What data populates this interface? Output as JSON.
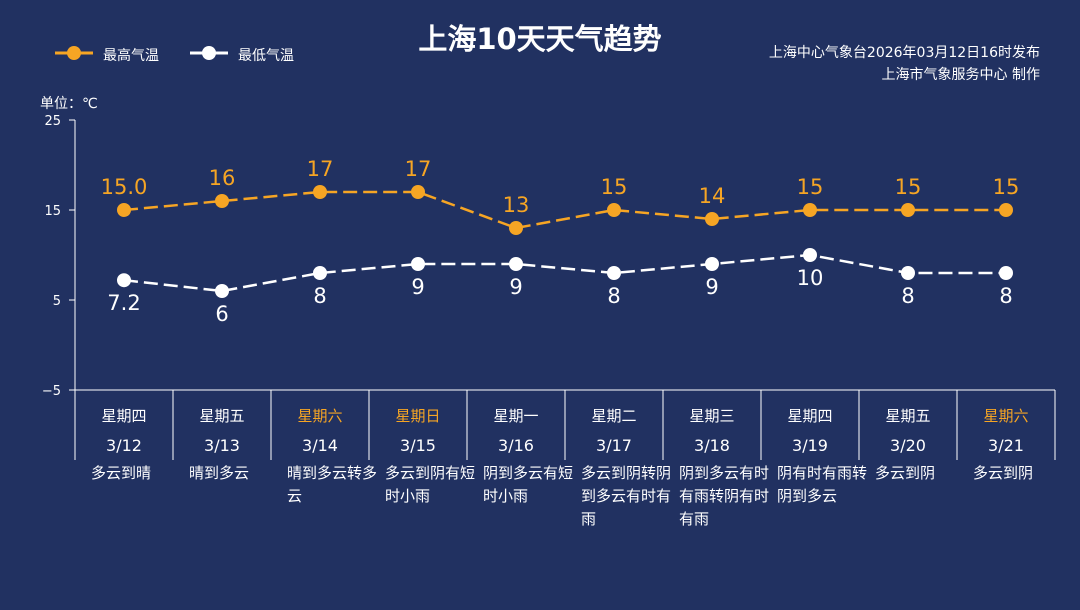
{
  "title": "上海10天天气趋势",
  "credit_line1": "上海中心气象台2026年03月12日16时发布",
  "credit_line2": "上海市气象服务中心 制作",
  "unit_label": "单位：℃",
  "legend": {
    "high": "最高气温",
    "low": "最低气温"
  },
  "colors": {
    "background": "#213161",
    "high": "#f6a524",
    "low": "#ffffff",
    "weekend": "#f6a524"
  },
  "chart_data": {
    "type": "line",
    "categories": [
      "3/12",
      "3/13",
      "3/14",
      "3/15",
      "3/16",
      "3/17",
      "3/18",
      "3/19",
      "3/20",
      "3/21"
    ],
    "weekdays": [
      "星期四",
      "星期五",
      "星期六",
      "星期日",
      "星期一",
      "星期二",
      "星期三",
      "星期四",
      "星期五",
      "星期六"
    ],
    "weekend": [
      false,
      false,
      true,
      true,
      false,
      false,
      false,
      false,
      false,
      true
    ],
    "conditions": [
      "多云到晴",
      "晴到多云",
      "晴到多云转多云",
      "多云到阴有短时小雨",
      "阴到多云有短时小雨",
      "多云到阴转阴到多云有时有雨",
      "阴到多云有时有雨转阴有时有雨",
      "阴有时有雨转阴到多云",
      "多云到阴",
      "多云到阴"
    ],
    "series": [
      {
        "name": "最高气温",
        "values": [
          15.0,
          16,
          17,
          17,
          13,
          15,
          14,
          15,
          15,
          15
        ],
        "labels": [
          "15.0",
          "16",
          "17",
          "17",
          "13",
          "15",
          "14",
          "15",
          "15",
          "15"
        ]
      },
      {
        "name": "最低气温",
        "values": [
          7.2,
          6,
          8,
          9,
          9,
          8,
          9,
          10,
          8,
          8
        ],
        "labels": [
          "7.2",
          "6",
          "8",
          "9",
          "9",
          "8",
          "9",
          "10",
          "8",
          "8"
        ]
      }
    ],
    "ylim": [
      -5,
      25
    ],
    "yticks": [
      "25",
      "15",
      "5",
      "−5"
    ]
  }
}
